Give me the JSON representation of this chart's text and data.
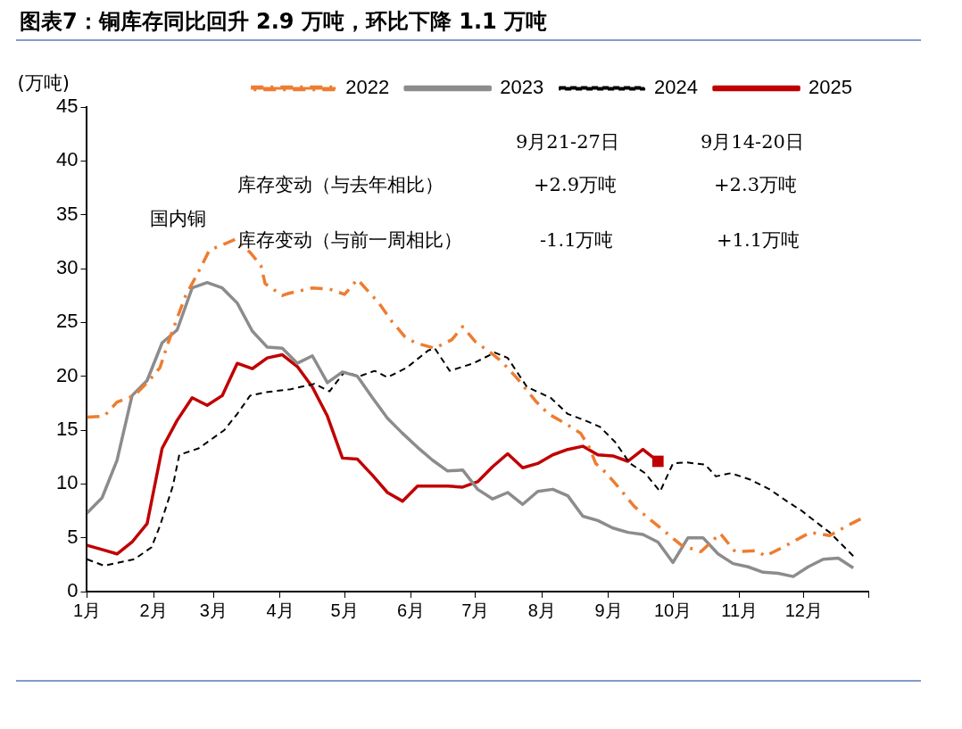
{
  "chart_data": {
    "type": "line",
    "title": "图表7：铜库存同比回升 2.9 万吨，环比下降 1.1 万吨",
    "ylabel": "(万吨)",
    "annotations": [
      "国内铜",
      "9月21-27日",
      "9月14-20日",
      "库存变动（与去年相比）",
      "+2.9万吨",
      "+2.3万吨",
      "库存变动（与前一周相比）",
      "-1.1万吨",
      "+1.1万吨"
    ],
    "xlim": [
      "--01-01",
      "--12-31"
    ],
    "xticks": [
      {
        "value": "--01-01",
        "label": "1月"
      },
      {
        "value": "--02-01",
        "label": "2月"
      },
      {
        "value": "--03-01",
        "label": "3月"
      },
      {
        "value": "--04-01",
        "label": "4月"
      },
      {
        "value": "--05-01",
        "label": "5月"
      },
      {
        "value": "--06-01",
        "label": "6月"
      },
      {
        "value": "--07-01",
        "label": "7月"
      },
      {
        "value": "--08-01",
        "label": "8月"
      },
      {
        "value": "--09-01",
        "label": "9月"
      },
      {
        "value": "--10-01",
        "label": "10月"
      },
      {
        "value": "--11-01",
        "label": "11月"
      },
      {
        "value": "--12-01",
        "label": "12月"
      },
      {
        "value": "--12-31",
        "label": null
      }
    ],
    "ylim": [
      0,
      45
    ],
    "yticks": [
      0,
      5,
      10,
      15,
      20,
      25,
      30,
      35,
      40,
      45
    ],
    "grid": false,
    "legend": "top",
    "series": [
      {
        "name": "2022",
        "color": "#ed7d31",
        "line_style": "dashdot",
        "x": [
          "--01-01",
          "--01-09",
          "--01-15",
          "--01-23",
          "--01-30",
          "--02-04",
          "--02-08",
          "--02-12",
          "--02-16",
          "--02-23",
          "--02-27",
          "--03-11",
          "--03-18",
          "--03-23",
          "--03-25",
          "--04-02",
          "--04-05",
          "--04-16",
          "--04-24",
          "--05-01",
          "--05-07",
          "--05-17",
          "--05-23",
          "--05-29",
          "--06-03",
          "--06-12",
          "--06-20",
          "--06-25",
          "--07-01",
          "--07-08",
          "--07-13",
          "--07-20",
          "--07-29",
          "--08-04",
          "--08-12",
          "--08-19",
          "--08-23",
          "--08-26",
          "--08-31",
          "--09-06",
          "--09-13",
          "--09-24",
          "--10-05",
          "--10-14",
          "--10-23",
          "--10-30",
          "--11-09",
          "--11-13",
          "--11-22",
          "--12-04",
          "--12-13",
          "--12-21",
          "--12-28"
        ],
        "values": [
          16.2,
          16.3,
          17.6,
          18.2,
          19.6,
          20.8,
          23.2,
          25.4,
          27.5,
          30.1,
          31.7,
          32.7,
          31.5,
          30.3,
          28.6,
          27.5,
          27.7,
          28.2,
          28.1,
          27.6,
          29.0,
          26.8,
          25.1,
          23.7,
          23.1,
          22.6,
          23.4,
          24.6,
          23.2,
          22.2,
          21.4,
          19.9,
          17.7,
          16.5,
          15.6,
          14.7,
          13.4,
          11.9,
          11.0,
          9.6,
          7.9,
          6.1,
          4.3,
          3.7,
          5.4,
          3.7,
          3.8,
          3.3,
          4.2,
          5.5,
          5.2,
          6.1,
          6.8
        ]
      },
      {
        "name": "2023",
        "color": "#8c8c8c",
        "line_style": "solid",
        "x": [
          "--01-01",
          "--01-08",
          "--01-15",
          "--01-22",
          "--01-29",
          "--02-05",
          "--02-12",
          "--02-19",
          "--02-26",
          "--03-05",
          "--03-12",
          "--03-19",
          "--03-26",
          "--04-02",
          "--04-09",
          "--04-16",
          "--04-23",
          "--04-30",
          "--05-07",
          "--05-14",
          "--05-21",
          "--05-28",
          "--06-04",
          "--06-11",
          "--06-18",
          "--06-25",
          "--07-02",
          "--07-09",
          "--07-16",
          "--07-23",
          "--07-30",
          "--08-06",
          "--08-13",
          "--08-20",
          "--08-27",
          "--09-03",
          "--09-10",
          "--09-17",
          "--09-24",
          "--10-01",
          "--10-08",
          "--10-15",
          "--10-22",
          "--10-29",
          "--11-05",
          "--11-12",
          "--11-19",
          "--11-26",
          "--12-03",
          "--12-10",
          "--12-17",
          "--12-24"
        ],
        "values": [
          7.3,
          8.7,
          12.2,
          18.2,
          19.6,
          23.1,
          24.3,
          28.2,
          28.7,
          28.2,
          26.8,
          24.2,
          22.7,
          22.6,
          21.2,
          21.9,
          19.4,
          20.4,
          20.0,
          18.0,
          16.1,
          14.7,
          13.4,
          12.2,
          11.2,
          11.3,
          9.5,
          8.6,
          9.2,
          8.1,
          9.3,
          9.5,
          8.9,
          7.0,
          6.6,
          5.9,
          5.5,
          5.3,
          4.6,
          2.7,
          5.0,
          5.0,
          3.5,
          2.6,
          2.3,
          1.8,
          1.7,
          1.4,
          2.3,
          3.0,
          3.1,
          2.2
        ]
      },
      {
        "name": "2024",
        "color": "#000000",
        "line_style": "dashed",
        "x": [
          "--01-01",
          "--01-09",
          "--01-23",
          "--01-31",
          "--02-04",
          "--02-10",
          "--02-13",
          "--02-22",
          "--03-06",
          "--03-12",
          "--03-18",
          "--03-25",
          "--04-06",
          "--04-17",
          "--04-24",
          "--05-01",
          "--05-08",
          "--05-15",
          "--05-21",
          "--05-30",
          "--06-09",
          "--06-12",
          "--06-19",
          "--06-30",
          "--07-10",
          "--07-16",
          "--07-25",
          "--08-05",
          "--08-13",
          "--08-21",
          "--08-28",
          "--09-04",
          "--09-11",
          "--09-18",
          "--09-25",
          "--10-01",
          "--10-07",
          "--10-16",
          "--10-21",
          "--10-28",
          "--11-06",
          "--11-15",
          "--11-23",
          "--11-30",
          "--12-09",
          "--12-13",
          "--12-24"
        ],
        "values": [
          3.0,
          2.4,
          3.0,
          4.1,
          6.1,
          9.8,
          12.7,
          13.3,
          15.0,
          16.5,
          18.2,
          18.5,
          18.8,
          19.3,
          18.6,
          20.4,
          20.0,
          20.5,
          19.9,
          20.8,
          22.4,
          22.6,
          20.5,
          21.2,
          22.2,
          21.7,
          19.0,
          18.0,
          16.5,
          15.9,
          15.3,
          13.9,
          11.9,
          11.0,
          9.3,
          11.9,
          12.0,
          11.8,
          10.7,
          11.0,
          10.4,
          9.5,
          8.4,
          7.5,
          6.1,
          5.5,
          3.3
        ]
      },
      {
        "type": "scatter",
        "color": "#c00000",
        "marker": "square",
        "x": [
          "--09-24"
        ],
        "values": [
          12.1
        ]
      },
      {
        "name": "2025",
        "color": "#c00000",
        "line_style": "solid",
        "x": [
          "--01-01",
          "--01-08",
          "--01-15",
          "--01-22",
          "--01-29",
          "--02-05",
          "--02-12",
          "--02-19",
          "--02-26",
          "--03-05",
          "--03-12",
          "--03-19",
          "--03-26",
          "--04-02",
          "--04-09",
          "--04-16",
          "--04-23",
          "--04-30",
          "--05-07",
          "--05-14",
          "--05-21",
          "--05-28",
          "--06-04",
          "--06-11",
          "--06-18",
          "--06-25",
          "--07-02",
          "--07-09",
          "--07-16",
          "--07-23",
          "--07-30",
          "--08-06",
          "--08-13",
          "--08-20",
          "--08-27",
          "--09-03",
          "--09-10",
          "--09-17",
          "--09-24"
        ],
        "values": [
          4.3,
          3.9,
          3.5,
          4.6,
          6.3,
          13.3,
          15.9,
          18.0,
          17.3,
          18.2,
          21.2,
          20.7,
          21.7,
          22.0,
          20.9,
          19.0,
          16.3,
          12.4,
          12.3,
          10.8,
          9.2,
          8.4,
          9.8,
          9.8,
          9.8,
          9.7,
          10.2,
          11.6,
          12.8,
          11.5,
          11.9,
          12.7,
          13.2,
          13.5,
          12.7,
          12.6,
          12.1,
          13.2,
          12.1
        ]
      }
    ]
  }
}
